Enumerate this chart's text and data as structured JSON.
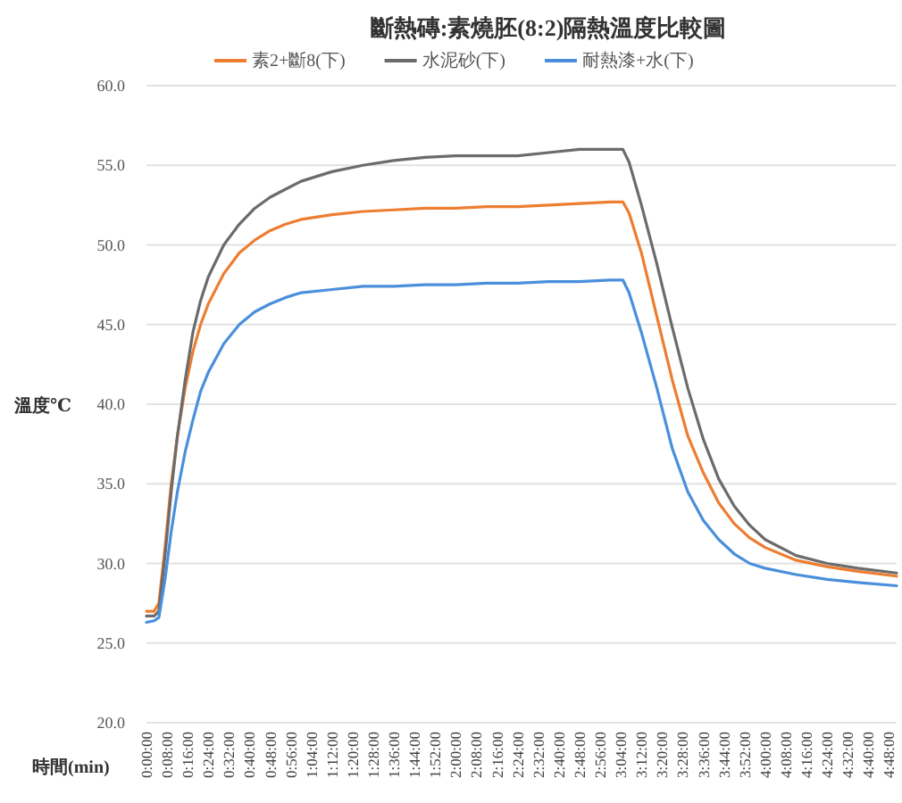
{
  "chart_data": {
    "type": "line",
    "title": "斷熱磚:素燒胚(8:2)隔熱溫度比較圖",
    "xlabel": "時間(min)",
    "ylabel": "溫度℃",
    "legend": "top",
    "grid": "y",
    "x": [
      0,
      0.05,
      0.08,
      0.12,
      0.16,
      0.2,
      0.25,
      0.3,
      0.35,
      0.4,
      0.5,
      0.6,
      0.7,
      0.8,
      0.9,
      1.0,
      1.2,
      1.4,
      1.6,
      1.8,
      2.0,
      2.2,
      2.4,
      2.6,
      2.8,
      3.0,
      3.08,
      3.12,
      3.2,
      3.3,
      3.4,
      3.5,
      3.6,
      3.7,
      3.8,
      3.9,
      4.0,
      4.2,
      4.4,
      4.6,
      4.85
    ],
    "series": [
      {
        "name": "素2+斷8(下)",
        "color": "#ed7d31",
        "values": [
          27.0,
          27.0,
          27.5,
          31.0,
          35.0,
          38.0,
          41.0,
          43.3,
          45.0,
          46.3,
          48.2,
          49.5,
          50.3,
          50.9,
          51.3,
          51.6,
          51.9,
          52.1,
          52.2,
          52.3,
          52.3,
          52.4,
          52.4,
          52.5,
          52.6,
          52.7,
          52.7,
          52.0,
          49.5,
          45.5,
          41.5,
          38.0,
          35.7,
          33.8,
          32.5,
          31.6,
          31.0,
          30.2,
          29.8,
          29.5,
          29.2
        ]
      },
      {
        "name": "水泥砂(下)",
        "color": "#6b6b6b",
        "values": [
          26.7,
          26.7,
          27.0,
          30.5,
          34.5,
          38.0,
          41.5,
          44.5,
          46.5,
          48.0,
          50.0,
          51.3,
          52.3,
          53.0,
          53.5,
          54.0,
          54.6,
          55.0,
          55.3,
          55.5,
          55.6,
          55.6,
          55.6,
          55.8,
          56.0,
          56.0,
          56.0,
          55.2,
          52.5,
          48.8,
          44.8,
          41.0,
          37.8,
          35.3,
          33.6,
          32.4,
          31.5,
          30.5,
          30.0,
          29.7,
          29.4
        ]
      },
      {
        "name": "耐熱漆+水(下)",
        "color": "#4a8fdc",
        "values": [
          26.3,
          26.4,
          26.6,
          29.0,
          32.0,
          34.5,
          37.0,
          39.0,
          40.8,
          42.0,
          43.8,
          45.0,
          45.8,
          46.3,
          46.7,
          47.0,
          47.2,
          47.4,
          47.4,
          47.5,
          47.5,
          47.6,
          47.6,
          47.7,
          47.7,
          47.8,
          47.8,
          47.0,
          44.5,
          41.0,
          37.2,
          34.5,
          32.7,
          31.5,
          30.6,
          30.0,
          29.7,
          29.3,
          29.0,
          28.8,
          28.6
        ]
      }
    ],
    "xlim": [
      0,
      4.85
    ],
    "xticks": [
      {
        "value": 0,
        "label": "0:00:00"
      },
      {
        "value": 0.133333,
        "label": "0:08:00"
      },
      {
        "value": 0.266667,
        "label": "0:16:00"
      },
      {
        "value": 0.4,
        "label": "0:24:00"
      },
      {
        "value": 0.533333,
        "label": "0:32:00"
      },
      {
        "value": 0.666667,
        "label": "0:40:00"
      },
      {
        "value": 0.8,
        "label": "0:48:00"
      },
      {
        "value": 0.933333,
        "label": "0:56:00"
      },
      {
        "value": 1.066667,
        "label": "1:04:00"
      },
      {
        "value": 1.2,
        "label": "1:12:00"
      },
      {
        "value": 1.333333,
        "label": "1:20:00"
      },
      {
        "value": 1.466667,
        "label": "1:28:00"
      },
      {
        "value": 1.6,
        "label": "1:36:00"
      },
      {
        "value": 1.733333,
        "label": "1:44:00"
      },
      {
        "value": 1.866667,
        "label": "1:52:00"
      },
      {
        "value": 2,
        "label": "2:00:00"
      },
      {
        "value": 2.133333,
        "label": "2:08:00"
      },
      {
        "value": 2.266667,
        "label": "2:16:00"
      },
      {
        "value": 2.4,
        "label": "2:24:00"
      },
      {
        "value": 2.533333,
        "label": "2:32:00"
      },
      {
        "value": 2.666667,
        "label": "2:40:00"
      },
      {
        "value": 2.8,
        "label": "2:48:00"
      },
      {
        "value": 2.933333,
        "label": "2:56:00"
      },
      {
        "value": 3.066667,
        "label": "3:04:00"
      },
      {
        "value": 3.2,
        "label": "3:12:00"
      },
      {
        "value": 3.333333,
        "label": "3:20:00"
      },
      {
        "value": 3.466667,
        "label": "3:28:00"
      },
      {
        "value": 3.6,
        "label": "3:36:00"
      },
      {
        "value": 3.733333,
        "label": "3:44:00"
      },
      {
        "value": 3.866667,
        "label": "3:52:00"
      },
      {
        "value": 4,
        "label": "4:00:00"
      },
      {
        "value": 4.133333,
        "label": "4:08:00"
      },
      {
        "value": 4.266667,
        "label": "4:16:00"
      },
      {
        "value": 4.4,
        "label": "4:24:00"
      },
      {
        "value": 4.533333,
        "label": "4:32:00"
      },
      {
        "value": 4.666667,
        "label": "4:40:00"
      },
      {
        "value": 4.8,
        "label": "4:48:00"
      }
    ],
    "ylim": [
      20,
      60
    ],
    "yticks": [
      {
        "value": 20,
        "label": "20.0"
      },
      {
        "value": 25,
        "label": "25.0"
      },
      {
        "value": 30,
        "label": "30.0"
      },
      {
        "value": 35,
        "label": "35.0"
      },
      {
        "value": 40,
        "label": "40.0"
      },
      {
        "value": 45,
        "label": "45.0"
      },
      {
        "value": 50,
        "label": "50.0"
      },
      {
        "value": 55,
        "label": "55.0"
      },
      {
        "value": 60,
        "label": "60.0"
      }
    ]
  }
}
